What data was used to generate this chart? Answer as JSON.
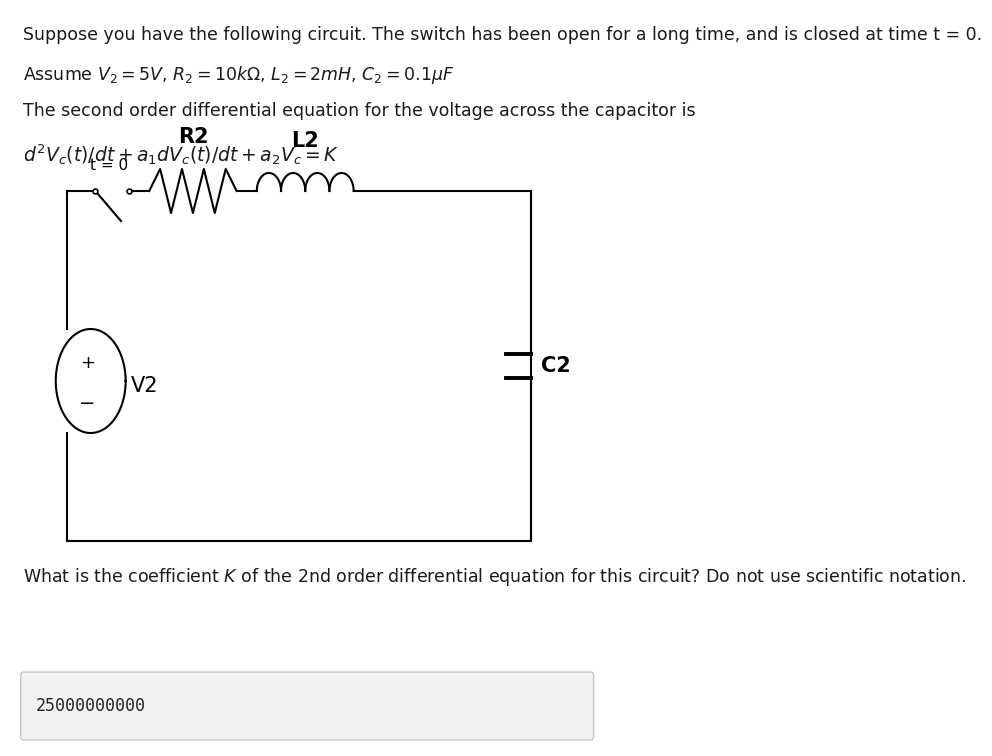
{
  "background_color": "#ffffff",
  "text_line1": "Suppose you have the following circuit. The switch has been open for a long time, and is closed at time t = 0.",
  "text_line2": "Assume $V_2 = 5V$, $R_2 = 10k\\Omega$, $L_2 = 2mH$, $C_2 = 0.1\\mu F$",
  "text_line3": "The second order differential equation for the voltage across the capacitor is",
  "text_line4": "$d^2V_c(t)/dt + a_1 dV_c(t)/dt + a_2 V_c = K$",
  "question_text": "What is the coefficient $K$ of the 2nd order differential equation for this circuit? Do not use scientific notation.",
  "answer_text": "25000000000",
  "answer_box_color": "#f2f2f2",
  "wire_color": "#000000",
  "label_R2": "R2",
  "label_L2": "L2",
  "label_V2": "V2",
  "label_C2": "C2",
  "label_switch": "t = 0",
  "font_size_body": 12.5,
  "font_size_component": 15,
  "font_size_answer": 12
}
